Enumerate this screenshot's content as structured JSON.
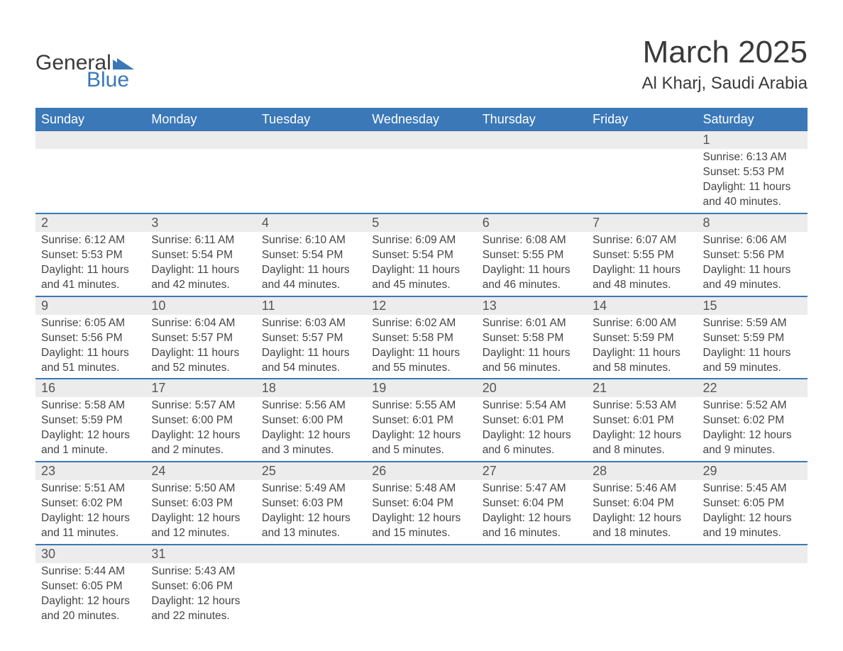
{
  "brand": {
    "name1": "General",
    "name2": "Blue",
    "flag_color": "#3a78b8"
  },
  "title": "March 2025",
  "subtitle": "Al Kharj, Saudi Arabia",
  "colors": {
    "header_bg": "#3a78b8",
    "header_text": "#ffffff",
    "daynum_bg": "#ececec",
    "text": "#444444",
    "rule": "#3a78b8",
    "page_bg": "#ffffff"
  },
  "typography": {
    "title_fontsize": 44,
    "subtitle_fontsize": 24,
    "header_fontsize": 18,
    "daynum_fontsize": 18,
    "detail_fontsize": 15.5
  },
  "layout": {
    "columns": 7,
    "column_labels_align": "left"
  },
  "day_labels": [
    "Sunday",
    "Monday",
    "Tuesday",
    "Wednesday",
    "Thursday",
    "Friday",
    "Saturday"
  ],
  "weeks": [
    [
      null,
      null,
      null,
      null,
      null,
      null,
      {
        "n": "1",
        "sunrise": "Sunrise: 6:13 AM",
        "sunset": "Sunset: 5:53 PM",
        "daylight": "Daylight: 11 hours and 40 minutes."
      }
    ],
    [
      {
        "n": "2",
        "sunrise": "Sunrise: 6:12 AM",
        "sunset": "Sunset: 5:53 PM",
        "daylight": "Daylight: 11 hours and 41 minutes."
      },
      {
        "n": "3",
        "sunrise": "Sunrise: 6:11 AM",
        "sunset": "Sunset: 5:54 PM",
        "daylight": "Daylight: 11 hours and 42 minutes."
      },
      {
        "n": "4",
        "sunrise": "Sunrise: 6:10 AM",
        "sunset": "Sunset: 5:54 PM",
        "daylight": "Daylight: 11 hours and 44 minutes."
      },
      {
        "n": "5",
        "sunrise": "Sunrise: 6:09 AM",
        "sunset": "Sunset: 5:54 PM",
        "daylight": "Daylight: 11 hours and 45 minutes."
      },
      {
        "n": "6",
        "sunrise": "Sunrise: 6:08 AM",
        "sunset": "Sunset: 5:55 PM",
        "daylight": "Daylight: 11 hours and 46 minutes."
      },
      {
        "n": "7",
        "sunrise": "Sunrise: 6:07 AM",
        "sunset": "Sunset: 5:55 PM",
        "daylight": "Daylight: 11 hours and 48 minutes."
      },
      {
        "n": "8",
        "sunrise": "Sunrise: 6:06 AM",
        "sunset": "Sunset: 5:56 PM",
        "daylight": "Daylight: 11 hours and 49 minutes."
      }
    ],
    [
      {
        "n": "9",
        "sunrise": "Sunrise: 6:05 AM",
        "sunset": "Sunset: 5:56 PM",
        "daylight": "Daylight: 11 hours and 51 minutes."
      },
      {
        "n": "10",
        "sunrise": "Sunrise: 6:04 AM",
        "sunset": "Sunset: 5:57 PM",
        "daylight": "Daylight: 11 hours and 52 minutes."
      },
      {
        "n": "11",
        "sunrise": "Sunrise: 6:03 AM",
        "sunset": "Sunset: 5:57 PM",
        "daylight": "Daylight: 11 hours and 54 minutes."
      },
      {
        "n": "12",
        "sunrise": "Sunrise: 6:02 AM",
        "sunset": "Sunset: 5:58 PM",
        "daylight": "Daylight: 11 hours and 55 minutes."
      },
      {
        "n": "13",
        "sunrise": "Sunrise: 6:01 AM",
        "sunset": "Sunset: 5:58 PM",
        "daylight": "Daylight: 11 hours and 56 minutes."
      },
      {
        "n": "14",
        "sunrise": "Sunrise: 6:00 AM",
        "sunset": "Sunset: 5:59 PM",
        "daylight": "Daylight: 11 hours and 58 minutes."
      },
      {
        "n": "15",
        "sunrise": "Sunrise: 5:59 AM",
        "sunset": "Sunset: 5:59 PM",
        "daylight": "Daylight: 11 hours and 59 minutes."
      }
    ],
    [
      {
        "n": "16",
        "sunrise": "Sunrise: 5:58 AM",
        "sunset": "Sunset: 5:59 PM",
        "daylight": "Daylight: 12 hours and 1 minute."
      },
      {
        "n": "17",
        "sunrise": "Sunrise: 5:57 AM",
        "sunset": "Sunset: 6:00 PM",
        "daylight": "Daylight: 12 hours and 2 minutes."
      },
      {
        "n": "18",
        "sunrise": "Sunrise: 5:56 AM",
        "sunset": "Sunset: 6:00 PM",
        "daylight": "Daylight: 12 hours and 3 minutes."
      },
      {
        "n": "19",
        "sunrise": "Sunrise: 5:55 AM",
        "sunset": "Sunset: 6:01 PM",
        "daylight": "Daylight: 12 hours and 5 minutes."
      },
      {
        "n": "20",
        "sunrise": "Sunrise: 5:54 AM",
        "sunset": "Sunset: 6:01 PM",
        "daylight": "Daylight: 12 hours and 6 minutes."
      },
      {
        "n": "21",
        "sunrise": "Sunrise: 5:53 AM",
        "sunset": "Sunset: 6:01 PM",
        "daylight": "Daylight: 12 hours and 8 minutes."
      },
      {
        "n": "22",
        "sunrise": "Sunrise: 5:52 AM",
        "sunset": "Sunset: 6:02 PM",
        "daylight": "Daylight: 12 hours and 9 minutes."
      }
    ],
    [
      {
        "n": "23",
        "sunrise": "Sunrise: 5:51 AM",
        "sunset": "Sunset: 6:02 PM",
        "daylight": "Daylight: 12 hours and 11 minutes."
      },
      {
        "n": "24",
        "sunrise": "Sunrise: 5:50 AM",
        "sunset": "Sunset: 6:03 PM",
        "daylight": "Daylight: 12 hours and 12 minutes."
      },
      {
        "n": "25",
        "sunrise": "Sunrise: 5:49 AM",
        "sunset": "Sunset: 6:03 PM",
        "daylight": "Daylight: 12 hours and 13 minutes."
      },
      {
        "n": "26",
        "sunrise": "Sunrise: 5:48 AM",
        "sunset": "Sunset: 6:04 PM",
        "daylight": "Daylight: 12 hours and 15 minutes."
      },
      {
        "n": "27",
        "sunrise": "Sunrise: 5:47 AM",
        "sunset": "Sunset: 6:04 PM",
        "daylight": "Daylight: 12 hours and 16 minutes."
      },
      {
        "n": "28",
        "sunrise": "Sunrise: 5:46 AM",
        "sunset": "Sunset: 6:04 PM",
        "daylight": "Daylight: 12 hours and 18 minutes."
      },
      {
        "n": "29",
        "sunrise": "Sunrise: 5:45 AM",
        "sunset": "Sunset: 6:05 PM",
        "daylight": "Daylight: 12 hours and 19 minutes."
      }
    ],
    [
      {
        "n": "30",
        "sunrise": "Sunrise: 5:44 AM",
        "sunset": "Sunset: 6:05 PM",
        "daylight": "Daylight: 12 hours and 20 minutes."
      },
      {
        "n": "31",
        "sunrise": "Sunrise: 5:43 AM",
        "sunset": "Sunset: 6:06 PM",
        "daylight": "Daylight: 12 hours and 22 minutes."
      },
      null,
      null,
      null,
      null,
      null
    ]
  ]
}
